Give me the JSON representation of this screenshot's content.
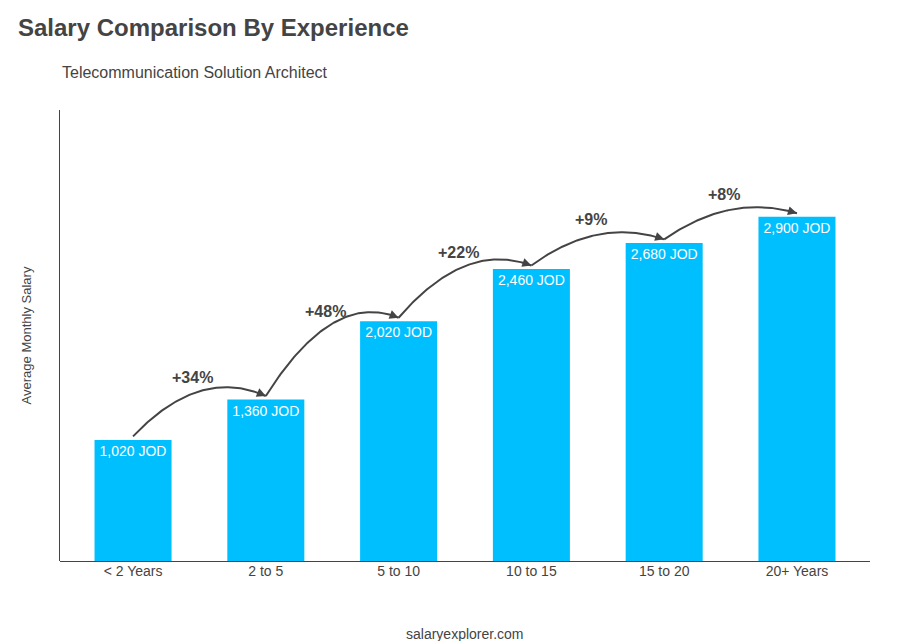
{
  "chart_data": {
    "type": "bar",
    "title": "Salary Comparison By Experience",
    "subtitle": "Telecommunication Solution Architect",
    "y_label": "Average Monthly Salary",
    "categories": [
      "< 2 Years",
      "2 to 5",
      "5 to 10",
      "10 to 15",
      "15 to 20",
      "20+ Years"
    ],
    "values": [
      1020,
      1360,
      2020,
      2460,
      2680,
      2900
    ],
    "value_labels": [
      "1,020 JOD",
      "1,360 JOD",
      "2,020 JOD",
      "2,460 JOD",
      "2,680 JOD",
      "2,900 JOD"
    ],
    "data_labels": true,
    "color": "#00BFFF",
    "annotations": [
      {
        "category": "2 to 5",
        "text": "+34%"
      },
      {
        "category": "5 to 10",
        "text": "+48%"
      },
      {
        "category": "10 to 15",
        "text": "+22%"
      },
      {
        "category": "15 to 20",
        "text": "+9%"
      },
      {
        "category": "20+ Years",
        "text": "+8%"
      }
    ],
    "footer": "salaryexplorer.com",
    "ylim": [
      0,
      3800
    ],
    "tick_labels": "x",
    "grid": false
  }
}
